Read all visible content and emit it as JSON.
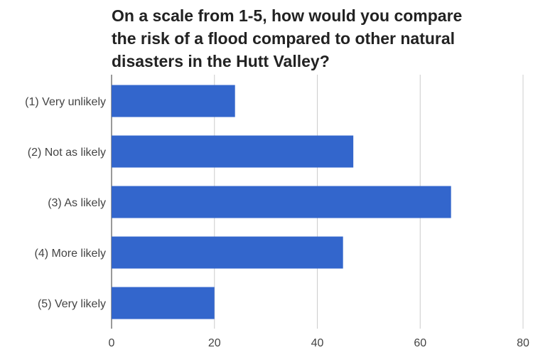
{
  "chart_data": {
    "type": "bar",
    "orientation": "horizontal",
    "title_lines": [
      "On a scale from 1-5, how would you compare",
      "the risk of a flood compared to other natural",
      "disasters in the Hutt Valley?"
    ],
    "categories": [
      "(1) Very unlikely",
      "(2) Not as likely",
      "(3) As likely",
      "(4) More likely",
      "(5) Very likely"
    ],
    "values": [
      24,
      47,
      66,
      45,
      20
    ],
    "xlim": [
      0,
      80
    ],
    "x_ticks": [
      0,
      20,
      40,
      60,
      80
    ],
    "grid": "vertical",
    "bar_color": "#3366cc",
    "xlabel": "",
    "ylabel": ""
  }
}
